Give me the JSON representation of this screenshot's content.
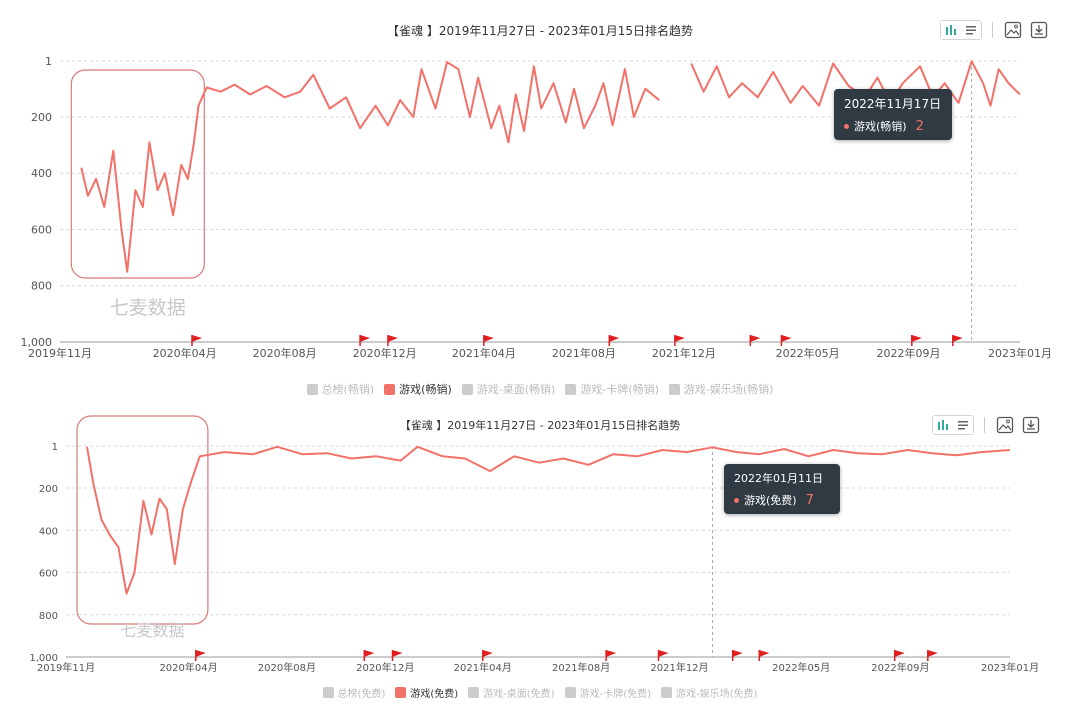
{
  "colors": {
    "series": "#f27168",
    "grid": "#d9d9d9",
    "axis": "#999999",
    "highlight_box": "#d87a7a",
    "tooltip_bg": "#2f3a42",
    "legend_inactive": "#cccccc"
  },
  "watermark": "七麦数据",
  "toolbar_icons": [
    "bar-chart-icon",
    "list-icon",
    "image-icon",
    "download-icon"
  ],
  "chart_data": [
    {
      "type": "line",
      "title": "【雀魂 】2019年11月27日 - 2023年01月15日排名趋势",
      "y_inverted": true,
      "ylim": [
        1,
        1000
      ],
      "y_ticks": [
        "1",
        "200",
        "400",
        "600",
        "800",
        "1,000"
      ],
      "x_ticks": [
        "2019年11月",
        "2020年04月",
        "2020年08月",
        "2020年12月",
        "2021年04月",
        "2021年08月",
        "2021年12月",
        "2022年05月",
        "2022年09月",
        "2023年01月"
      ],
      "legend": [
        {
          "name": "总榜(畅销)",
          "active": false
        },
        {
          "name": "游戏(畅销)",
          "active": true
        },
        {
          "name": "游戏-桌面(畅销)",
          "active": false
        },
        {
          "name": "游戏-卡牌(畅销)",
          "active": false
        },
        {
          "name": "游戏-娱乐场(畅销)",
          "active": false
        }
      ],
      "series": [
        {
          "name": "游戏(畅销)",
          "points": [
            [
              "2019-11-27",
              380
            ],
            [
              "2019-12-05",
              480
            ],
            [
              "2019-12-15",
              420
            ],
            [
              "2019-12-25",
              520
            ],
            [
              "2020-01-05",
              320
            ],
            [
              "2020-01-15",
              600
            ],
            [
              "2020-01-22",
              750
            ],
            [
              "2020-02-01",
              460
            ],
            [
              "2020-02-10",
              520
            ],
            [
              "2020-02-18",
              290
            ],
            [
              "2020-02-28",
              460
            ],
            [
              "2020-03-08",
              400
            ],
            [
              "2020-03-18",
              550
            ],
            [
              "2020-03-28",
              370
            ],
            [
              "2020-04-05",
              420
            ],
            [
              "2020-04-12",
              300
            ],
            [
              "2020-04-18",
              160
            ],
            [
              "2020-04-28",
              95
            ],
            [
              "2020-05-15",
              110
            ],
            [
              "2020-06-01",
              85
            ],
            [
              "2020-06-20",
              120
            ],
            [
              "2020-07-10",
              90
            ],
            [
              "2020-08-01",
              130
            ],
            [
              "2020-08-20",
              110
            ],
            [
              "2020-09-05",
              50
            ],
            [
              "2020-09-25",
              170
            ],
            [
              "2020-10-15",
              130
            ],
            [
              "2020-11-01",
              240
            ],
            [
              "2020-11-20",
              160
            ],
            [
              "2020-12-05",
              230
            ],
            [
              "2020-12-20",
              140
            ],
            [
              "2021-01-05",
              200
            ],
            [
              "2021-01-15",
              30
            ],
            [
              "2021-02-01",
              170
            ],
            [
              "2021-02-15",
              5
            ],
            [
              "2021-03-01",
              30
            ],
            [
              "2021-03-15",
              200
            ],
            [
              "2021-03-25",
              60
            ],
            [
              "2021-04-10",
              240
            ],
            [
              "2021-04-20",
              160
            ],
            [
              "2021-05-01",
              290
            ],
            [
              "2021-05-10",
              120
            ],
            [
              "2021-05-20",
              250
            ],
            [
              "2021-06-01",
              20
            ],
            [
              "2021-06-10",
              170
            ],
            [
              "2021-06-25",
              80
            ],
            [
              "2021-07-10",
              220
            ],
            [
              "2021-07-20",
              100
            ],
            [
              "2021-08-01",
              240
            ],
            [
              "2021-08-15",
              160
            ],
            [
              "2021-08-25",
              80
            ],
            [
              "2021-09-05",
              230
            ],
            [
              "2021-09-20",
              30
            ],
            [
              "2021-10-01",
              200
            ],
            [
              "2021-10-15",
              100
            ],
            [
              "2021-11-01",
              140
            ],
            [
              "2021-11-10",
              null
            ],
            [
              "2021-12-10",
              10
            ],
            [
              "2021-12-25",
              110
            ],
            [
              "2022-01-10",
              20
            ],
            [
              "2022-01-25",
              130
            ],
            [
              "2022-02-10",
              80
            ],
            [
              "2022-03-01",
              130
            ],
            [
              "2022-03-20",
              40
            ],
            [
              "2022-04-10",
              150
            ],
            [
              "2022-04-25",
              90
            ],
            [
              "2022-05-15",
              160
            ],
            [
              "2022-06-01",
              10
            ],
            [
              "2022-06-20",
              90
            ],
            [
              "2022-07-10",
              130
            ],
            [
              "2022-07-25",
              60
            ],
            [
              "2022-08-10",
              150
            ],
            [
              "2022-08-25",
              80
            ],
            [
              "2022-09-15",
              20
            ],
            [
              "2022-10-01",
              130
            ],
            [
              "2022-10-15",
              80
            ],
            [
              "2022-11-01",
              150
            ],
            [
              "2022-11-17",
              2
            ],
            [
              "2022-12-01",
              80
            ],
            [
              "2022-12-10",
              160
            ],
            [
              "2022-12-20",
              30
            ],
            [
              "2023-01-01",
              80
            ],
            [
              "2023-01-15",
              120
            ]
          ]
        }
      ],
      "markers": [
        "2020-04-10",
        "2020-11-01",
        "2020-12-05",
        "2021-04-01",
        "2021-09-01",
        "2021-11-20",
        "2022-02-20",
        "2022-03-30",
        "2022-09-05",
        "2022-10-25"
      ],
      "tooltip": {
        "date": "2022年11月17日",
        "label": "游戏(畅销)",
        "value": "2"
      }
    },
    {
      "type": "line",
      "title": "【雀魂 】2019年11月27日 - 2023年01月15日排名趋势",
      "y_inverted": true,
      "ylim": [
        1,
        1000
      ],
      "y_ticks": [
        "1",
        "200",
        "400",
        "600",
        "800",
        "1,000"
      ],
      "x_ticks": [
        "2019年11月",
        "2020年04月",
        "2020年08月",
        "2020年12月",
        "2021年04月",
        "2021年08月",
        "2021年12月",
        "2022年05月",
        "2022年09月",
        "2023年01月"
      ],
      "legend": [
        {
          "name": "总榜(免费)",
          "active": false
        },
        {
          "name": "游戏(免费)",
          "active": true
        },
        {
          "name": "游戏-桌面(免费)",
          "active": false
        },
        {
          "name": "游戏-卡牌(免费)",
          "active": false
        },
        {
          "name": "游戏-娱乐场(免费)",
          "active": false
        }
      ],
      "series": [
        {
          "name": "游戏(免费)",
          "points": [
            [
              "2019-11-27",
              5
            ],
            [
              "2019-12-05",
              180
            ],
            [
              "2019-12-15",
              350
            ],
            [
              "2019-12-25",
              420
            ],
            [
              "2020-01-05",
              480
            ],
            [
              "2020-01-15",
              700
            ],
            [
              "2020-01-25",
              600
            ],
            [
              "2020-02-05",
              260
            ],
            [
              "2020-02-15",
              420
            ],
            [
              "2020-02-25",
              250
            ],
            [
              "2020-03-05",
              300
            ],
            [
              "2020-03-15",
              560
            ],
            [
              "2020-03-25",
              300
            ],
            [
              "2020-04-05",
              160
            ],
            [
              "2020-04-15",
              50
            ],
            [
              "2020-05-15",
              30
            ],
            [
              "2020-06-20",
              40
            ],
            [
              "2020-07-20",
              5
            ],
            [
              "2020-08-20",
              40
            ],
            [
              "2020-09-20",
              35
            ],
            [
              "2020-10-20",
              60
            ],
            [
              "2020-11-20",
              50
            ],
            [
              "2020-12-20",
              70
            ],
            [
              "2021-01-10",
              5
            ],
            [
              "2021-02-10",
              50
            ],
            [
              "2021-03-10",
              60
            ],
            [
              "2021-04-10",
              120
            ],
            [
              "2021-05-10",
              50
            ],
            [
              "2021-06-10",
              80
            ],
            [
              "2021-07-10",
              60
            ],
            [
              "2021-08-10",
              90
            ],
            [
              "2021-09-10",
              40
            ],
            [
              "2021-10-10",
              50
            ],
            [
              "2021-11-10",
              20
            ],
            [
              "2021-12-10",
              30
            ],
            [
              "2022-01-11",
              7
            ],
            [
              "2022-02-10",
              30
            ],
            [
              "2022-03-10",
              40
            ],
            [
              "2022-04-10",
              15
            ],
            [
              "2022-05-10",
              50
            ],
            [
              "2022-06-10",
              20
            ],
            [
              "2022-07-10",
              35
            ],
            [
              "2022-08-10",
              40
            ],
            [
              "2022-09-10",
              20
            ],
            [
              "2022-10-10",
              35
            ],
            [
              "2022-11-10",
              45
            ],
            [
              "2022-12-10",
              30
            ],
            [
              "2023-01-15",
              20
            ]
          ]
        }
      ],
      "markers": [
        "2020-04-10",
        "2020-11-05",
        "2020-12-10",
        "2021-04-01",
        "2021-09-01",
        "2021-11-05",
        "2022-02-05",
        "2022-03-10",
        "2022-08-25",
        "2022-10-05"
      ],
      "tooltip": {
        "date": "2022年01月11日",
        "label": "游戏(免费)",
        "value": "7"
      }
    }
  ]
}
